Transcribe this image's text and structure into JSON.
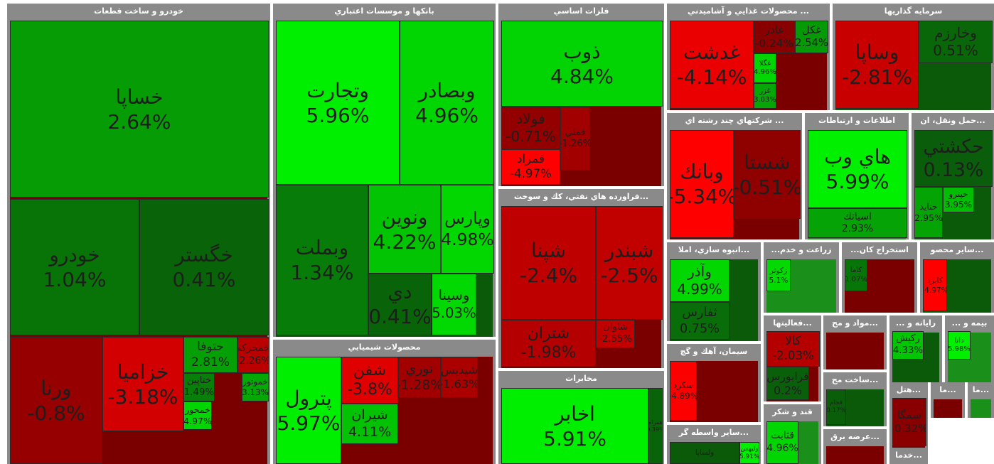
{
  "sectors": [
    {
      "title": "خودرو و ساخت قطعات",
      "tiles": [
        {
          "name": "خساپا",
          "change": "2.64%"
        },
        {
          "name": "خودرو",
          "change": "1.04%"
        },
        {
          "name": "خگستر",
          "change": "0.41%"
        },
        {
          "name": "ورنا",
          "change": "-0.8%"
        },
        {
          "name": "خزامیا",
          "change": "-3.18%"
        },
        {
          "name": "حتوفا",
          "change": "2.81%"
        },
        {
          "name": "خمحرکه",
          "change": "-2.26%"
        },
        {
          "name": "ختاپين",
          "change": "1.49%"
        },
        {
          "name": "خموتور",
          "change": "3.13%"
        },
        {
          "name": "خمحور",
          "change": "4.97%"
        }
      ]
    },
    {
      "title": "بانكها و موسسات اعتباري",
      "tiles": [
        {
          "name": "وتجارت",
          "change": "5.96%"
        },
        {
          "name": "وبصادر",
          "change": "4.96%"
        },
        {
          "name": "وبملت",
          "change": "1.34%"
        },
        {
          "name": "ونوين",
          "change": "4.22%"
        },
        {
          "name": "وپارس",
          "change": "4.98%"
        },
        {
          "name": "دي",
          "change": "0.41%"
        },
        {
          "name": "وسينا",
          "change": "5.03%"
        }
      ]
    },
    {
      "title": "محصولات شيميايي",
      "tiles": [
        {
          "name": "پترول",
          "change": "5.97%"
        },
        {
          "name": "شفن",
          "change": "-3.8%"
        },
        {
          "name": "شيران",
          "change": "4.11%"
        },
        {
          "name": "نوري",
          "change": "-1.28%"
        },
        {
          "name": "شپديس",
          "change": "-1.63%"
        }
      ]
    },
    {
      "title": "فلزات اساسي",
      "tiles": [
        {
          "name": "ذوب",
          "change": "4.84%"
        },
        {
          "name": "فولاد",
          "change": "-0.71%"
        },
        {
          "name": "فمراد",
          "change": "-4.97%"
        },
        {
          "name": "فملي",
          "change": "-1.26%"
        }
      ]
    },
    {
      "title": "...فراورده هاي نفتي، كك و سوخت",
      "tiles": [
        {
          "name": "شپنا",
          "change": "-2.4%"
        },
        {
          "name": "شبندر",
          "change": "-2.5%"
        },
        {
          "name": "شتران",
          "change": "-1.98%"
        },
        {
          "name": "شاوان",
          "change": "-2.55%"
        }
      ]
    },
    {
      "title": "مخابرات",
      "tiles": [
        {
          "name": "اخابر",
          "change": "5.91%"
        },
        {
          "name": "همراه",
          "change": "0.39%"
        }
      ]
    },
    {
      "title": "... محصولات غذايي و آشاميدني",
      "tiles": [
        {
          "name": "غدشت",
          "change": "-4.14%"
        },
        {
          "name": "غادر",
          "change": "-0.24%"
        },
        {
          "name": "غكل",
          "change": "2.54%"
        },
        {
          "name": "غگلا",
          "change": "4.96%"
        },
        {
          "name": "غزر",
          "change": "3.03%"
        }
      ]
    },
    {
      "title": "... شركتهاي چند رشته اي",
      "tiles": [
        {
          "name": "وبانك",
          "change": "-5.34%"
        },
        {
          "name": "شستا",
          "change": "-0.51%"
        }
      ]
    },
    {
      "title": "سرمايه گذاريها",
      "tiles": [
        {
          "name": "وساپا",
          "change": "-2.81%"
        },
        {
          "name": "وخارزم",
          "change": "0.51%"
        }
      ]
    },
    {
      "title": "اطلاعات و ارتباطات",
      "tiles": [
        {
          "name": "هاي وب",
          "change": "5.99%"
        },
        {
          "name": "اسياتك",
          "change": "2.93%"
        }
      ]
    },
    {
      "title": "...حمل ونقل، ان",
      "tiles": [
        {
          "name": "حكشتي",
          "change": "0.13%"
        },
        {
          "name": "حتايد",
          "change": "2.95%"
        },
        {
          "name": "حپترو",
          "change": "3.95%"
        }
      ]
    },
    {
      "title": "...انبوه سازي، املا",
      "tiles": [
        {
          "name": "وآذر",
          "change": "4.99%"
        },
        {
          "name": "ثفارس",
          "change": "0.75%"
        }
      ]
    },
    {
      "title": "سيمان، آهك و گچ",
      "tiles": [
        {
          "name": "سكرد",
          "change": "-4.89%"
        }
      ]
    },
    {
      "title": "...ساير واسطه گر",
      "tiles": [
        {
          "name": "ولساپا"
        },
        {
          "name": "ولبهمن",
          "change": "5.91%"
        }
      ]
    },
    {
      "title": "زراعت و خدم...",
      "tiles": [
        {
          "name": "زكوثر",
          "change": "5.1%"
        }
      ]
    },
    {
      "title": "استخراج كان...",
      "tiles": [
        {
          "name": "كاما",
          "change": "1.07%"
        }
      ]
    },
    {
      "title": "...ساير محصو",
      "tiles": [
        {
          "name": "كابرد",
          "change": "-4.97%"
        }
      ]
    },
    {
      "title": "...فعاليتها",
      "tiles": [
        {
          "name": "كالا",
          "change": "-2.03%"
        },
        {
          "name": "فرابورس",
          "change": "0.2%"
        }
      ]
    },
    {
      "title": "...مواد و مح",
      "tiles": []
    },
    {
      "title": "رايانه و ...",
      "tiles": [
        {
          "name": "ركيش",
          "change": "4.33%"
        }
      ]
    },
    {
      "title": "بيمه و ...",
      "tiles": [
        {
          "name": "دانا",
          "change": "5.98%"
        }
      ]
    },
    {
      "title": "...ساخت مح",
      "tiles": [
        {
          "name": "قجام",
          "change": "0.17%"
        }
      ]
    },
    {
      "title": "قند و شكر",
      "tiles": [
        {
          "name": "قثابت",
          "change": "4.96%"
        }
      ]
    },
    {
      "title": "...عرضه برق",
      "tiles": []
    },
    {
      "title": "...هتل",
      "tiles": [
        {
          "name": "سمگا",
          "change": "-0.32%"
        }
      ]
    },
    {
      "title": "...ما",
      "tiles": []
    },
    {
      "title": "...ما",
      "tiles": []
    },
    {
      "title": "...خدما",
      "tiles": []
    }
  ]
}
